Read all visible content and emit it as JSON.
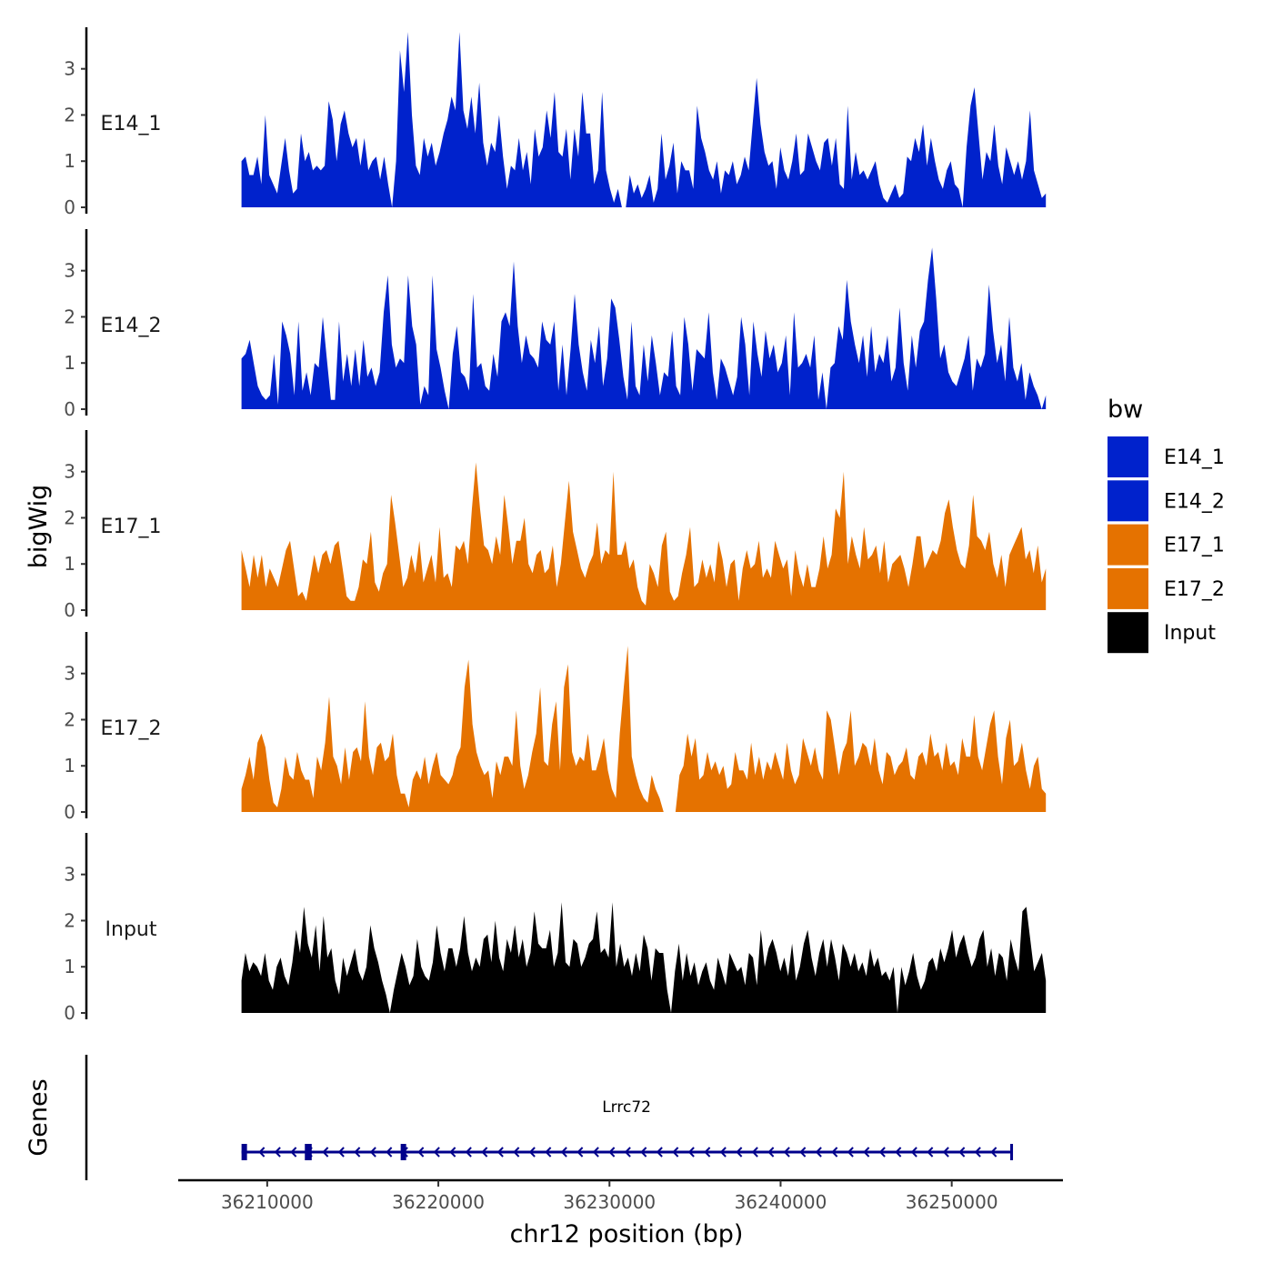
{
  "colors": {
    "blue": "#0022cc",
    "orange": "#e57200",
    "black": "#000000",
    "gene": "#00008b",
    "axis": "#000000"
  },
  "chart_data": {
    "type": "area",
    "title": "",
    "xlabel": "chr12 position (bp)",
    "ylabel_tracks": "bigWig",
    "ylabel_genes": "Genes",
    "xlim": [
      36204800,
      36256500
    ],
    "data_range": [
      36208500,
      36255500
    ],
    "ylim": [
      0,
      3.9
    ],
    "y_ticks": [
      "0",
      "1",
      "2",
      "3"
    ],
    "x_ticks": [
      {
        "value": 36210000,
        "label": "36210000"
      },
      {
        "value": 36220000,
        "label": "36220000"
      },
      {
        "value": 36230000,
        "label": "36230000"
      },
      {
        "value": 36240000,
        "label": "36240000"
      },
      {
        "value": 36250000,
        "label": "36250000"
      }
    ],
    "legend": {
      "title": "bw",
      "position": "right",
      "entries": [
        {
          "label": "E14_1",
          "color": "#0022cc"
        },
        {
          "label": "E14_2",
          "color": "#0022cc"
        },
        {
          "label": "E17_1",
          "color": "#e57200"
        },
        {
          "label": "E17_2",
          "color": "#e57200"
        },
        {
          "label": "Input",
          "color": "#000000"
        }
      ]
    },
    "series": [
      {
        "name": "E14_1",
        "color": "#0022cc",
        "values": [
          1.0,
          1.1,
          0.7,
          0.7,
          1.1,
          0.5,
          2.0,
          0.7,
          0.5,
          0.3,
          0.9,
          1.5,
          0.8,
          0.3,
          0.4,
          1.6,
          1.0,
          1.2,
          0.8,
          0.9,
          0.8,
          0.9,
          2.3,
          1.9,
          1.0,
          1.8,
          2.1,
          1.6,
          1.3,
          1.5,
          0.9,
          1.5,
          0.8,
          1.0,
          1.1,
          0.6,
          1.1,
          0.5,
          0.0,
          1.0,
          3.4,
          2.5,
          3.8,
          2.0,
          0.9,
          0.7,
          1.5,
          1.1,
          1.4,
          0.9,
          1.2,
          1.6,
          1.9,
          2.4,
          2.1,
          3.8,
          2.1,
          1.7,
          2.4,
          1.6,
          2.7,
          1.4,
          0.9,
          1.4,
          1.2,
          2.0,
          1.1,
          0.4,
          0.9,
          0.8,
          1.5,
          0.8,
          1.2,
          0.5,
          1.7,
          1.1,
          1.3,
          2.1,
          1.5,
          2.5,
          1.2,
          1.1,
          1.7,
          0.6,
          1.7,
          1.1,
          2.5,
          1.6,
          1.6,
          0.5,
          0.8,
          2.5,
          0.8,
          0.4,
          0.1,
          0.4,
          0.0,
          0.0,
          0.7,
          0.3,
          0.5,
          0.2,
          0.4,
          0.7,
          0.1,
          0.4,
          1.6,
          0.6,
          0.9,
          1.4,
          0.3,
          1.0,
          0.8,
          0.8,
          0.4,
          2.2,
          1.5,
          1.2,
          0.8,
          0.6,
          1.0,
          0.3,
          0.8,
          0.7,
          1.0,
          0.5,
          0.7,
          1.1,
          0.8,
          1.8,
          2.8,
          1.8,
          1.2,
          0.9,
          1.0,
          0.4,
          1.3,
          0.8,
          0.6,
          1.0,
          1.6,
          0.7,
          0.8,
          1.6,
          1.3,
          1.0,
          0.8,
          1.4,
          1.5,
          0.9,
          1.5,
          0.5,
          0.4,
          2.2,
          0.6,
          1.2,
          0.7,
          0.8,
          0.6,
          0.8,
          1.0,
          0.5,
          0.2,
          0.1,
          0.3,
          0.5,
          0.2,
          0.3,
          1.1,
          1.0,
          1.5,
          1.2,
          1.8,
          0.9,
          1.5,
          1.0,
          0.6,
          0.4,
          0.8,
          1.0,
          0.5,
          0.4,
          0.0,
          1.3,
          2.2,
          2.6,
          1.6,
          0.6,
          1.2,
          1.0,
          1.8,
          0.9,
          0.5,
          1.3,
          1.0,
          0.7,
          1.0,
          0.6,
          1.0,
          2.1,
          0.8,
          0.5,
          0.2,
          0.3
        ]
      },
      {
        "name": "E14_2",
        "color": "#0022cc",
        "values": [
          1.1,
          1.2,
          1.5,
          1.0,
          0.5,
          0.3,
          0.2,
          0.3,
          1.2,
          0.1,
          1.9,
          1.6,
          1.2,
          0.3,
          1.9,
          0.4,
          0.8,
          0.3,
          1.0,
          0.9,
          2.0,
          1.1,
          0.2,
          0.2,
          1.9,
          0.6,
          1.2,
          0.5,
          1.3,
          0.5,
          1.5,
          0.7,
          0.9,
          0.5,
          0.8,
          2.1,
          2.9,
          1.4,
          0.9,
          1.1,
          1.0,
          2.9,
          1.8,
          1.4,
          0.1,
          0.5,
          0.3,
          2.9,
          1.3,
          0.9,
          0.4,
          0.0,
          1.2,
          1.8,
          0.8,
          0.7,
          0.4,
          2.5,
          0.9,
          1.0,
          0.5,
          0.4,
          1.2,
          0.7,
          1.9,
          2.1,
          1.8,
          3.2,
          1.8,
          1.0,
          1.6,
          1.2,
          1.1,
          0.9,
          1.9,
          1.5,
          1.4,
          1.9,
          0.4,
          1.4,
          0.3,
          1.3,
          2.5,
          1.4,
          0.8,
          0.4,
          1.5,
          1.0,
          1.8,
          0.5,
          1.1,
          2.4,
          2.2,
          1.5,
          0.7,
          0.2,
          1.9,
          0.5,
          0.3,
          1.4,
          0.6,
          1.6,
          1.0,
          0.3,
          0.8,
          0.7,
          1.7,
          0.5,
          0.3,
          2.0,
          1.4,
          0.4,
          1.3,
          1.2,
          1.1,
          2.1,
          0.8,
          0.2,
          1.1,
          0.9,
          0.6,
          0.3,
          0.7,
          2.0,
          1.4,
          0.3,
          1.9,
          1.2,
          0.7,
          1.7,
          1.1,
          1.4,
          0.8,
          1.0,
          1.6,
          0.3,
          2.1,
          0.9,
          1.0,
          1.2,
          0.9,
          1.6,
          0.2,
          0.8,
          0.0,
          0.9,
          1.0,
          1.8,
          1.5,
          2.8,
          1.9,
          1.4,
          1.0,
          1.6,
          0.7,
          1.8,
          0.8,
          1.2,
          1.0,
          1.6,
          0.6,
          0.9,
          2.2,
          1.0,
          0.4,
          1.6,
          0.9,
          1.7,
          1.9,
          2.8,
          3.5,
          2.4,
          1.1,
          1.4,
          0.8,
          0.6,
          0.5,
          0.8,
          1.1,
          1.6,
          0.4,
          1.1,
          0.9,
          1.2,
          2.7,
          1.7,
          1.0,
          1.4,
          0.6,
          2.0,
          0.9,
          0.6,
          1.0,
          0.2,
          0.8,
          0.5,
          0.3,
          0.0,
          0.3
        ]
      },
      {
        "name": "E17_1",
        "color": "#e57200",
        "values": [
          1.3,
          0.9,
          0.5,
          1.2,
          0.7,
          1.2,
          0.5,
          0.9,
          0.7,
          0.5,
          0.9,
          1.3,
          1.5,
          0.9,
          0.3,
          0.4,
          0.2,
          0.7,
          1.2,
          0.8,
          1.2,
          1.3,
          1.0,
          1.4,
          1.5,
          0.9,
          0.3,
          0.2,
          0.2,
          0.5,
          1.1,
          1.0,
          1.7,
          0.6,
          0.4,
          0.8,
          1.0,
          2.5,
          1.9,
          1.2,
          0.5,
          0.7,
          1.2,
          0.8,
          1.5,
          0.6,
          0.9,
          1.2,
          0.6,
          1.8,
          0.7,
          0.8,
          0.5,
          1.4,
          1.3,
          1.5,
          1.0,
          2.2,
          3.2,
          2.2,
          1.4,
          1.3,
          1.0,
          1.6,
          1.2,
          2.5,
          1.8,
          1.0,
          1.5,
          1.5,
          2.0,
          1.0,
          0.8,
          1.2,
          1.3,
          0.8,
          0.9,
          1.4,
          0.5,
          1.0,
          1.9,
          2.8,
          1.7,
          1.3,
          0.9,
          0.7,
          1.0,
          1.2,
          1.9,
          1.0,
          1.3,
          1.2,
          3.0,
          1.2,
          1.2,
          1.5,
          0.9,
          1.1,
          0.5,
          0.2,
          0.1,
          1.0,
          0.8,
          0.5,
          1.4,
          1.7,
          0.4,
          0.2,
          0.3,
          0.8,
          1.2,
          1.8,
          0.5,
          0.6,
          1.1,
          0.7,
          1.0,
          0.6,
          1.5,
          1.1,
          0.5,
          1.0,
          1.1,
          0.2,
          0.9,
          1.3,
          0.9,
          1.0,
          1.5,
          0.7,
          0.9,
          0.7,
          1.5,
          1.2,
          0.9,
          1.1,
          0.3,
          1.3,
          0.8,
          0.5,
          1.0,
          0.5,
          0.5,
          0.9,
          1.6,
          0.9,
          1.2,
          2.2,
          2.0,
          3.0,
          1.0,
          1.6,
          1.2,
          0.9,
          1.8,
          1.1,
          1.2,
          1.4,
          0.8,
          1.5,
          0.6,
          1.0,
          1.1,
          1.2,
          0.9,
          0.5,
          1.0,
          1.6,
          1.6,
          0.9,
          1.1,
          1.3,
          1.2,
          1.5,
          2.1,
          2.4,
          1.8,
          1.3,
          1.0,
          0.9,
          1.4,
          2.5,
          1.6,
          1.5,
          1.3,
          1.7,
          1.0,
          0.7,
          1.2,
          0.5,
          1.2,
          1.4,
          1.6,
          1.8,
          1.1,
          1.3,
          0.8,
          1.4,
          0.6,
          0.9
        ]
      },
      {
        "name": "E17_2",
        "color": "#e57200",
        "values": [
          0.5,
          0.8,
          1.2,
          0.7,
          1.5,
          1.7,
          1.4,
          0.7,
          0.2,
          0.1,
          0.5,
          1.2,
          0.8,
          0.7,
          1.3,
          0.9,
          0.7,
          0.7,
          0.3,
          1.2,
          0.9,
          1.5,
          2.5,
          1.2,
          1.0,
          0.6,
          1.4,
          0.7,
          1.3,
          1.4,
          1.1,
          2.4,
          1.2,
          0.8,
          1.4,
          1.5,
          1.1,
          1.2,
          1.7,
          0.8,
          0.4,
          0.4,
          0.1,
          0.7,
          0.9,
          0.7,
          1.2,
          0.6,
          1.0,
          1.3,
          0.8,
          0.7,
          0.6,
          0.8,
          1.2,
          1.4,
          2.7,
          3.3,
          1.9,
          1.3,
          1.0,
          0.8,
          0.9,
          0.3,
          1.1,
          0.8,
          1.2,
          1.2,
          1.0,
          2.2,
          1.0,
          0.5,
          0.8,
          1.3,
          1.7,
          2.7,
          1.1,
          1.0,
          1.9,
          2.4,
          0.9,
          2.7,
          3.2,
          1.3,
          1.0,
          1.2,
          1.1,
          1.7,
          0.9,
          0.9,
          1.2,
          1.6,
          0.9,
          0.5,
          0.3,
          1.7,
          2.7,
          3.6,
          1.2,
          0.8,
          0.5,
          0.3,
          0.2,
          0.8,
          0.5,
          0.3,
          0.0,
          0.0,
          0.0,
          0.0,
          0.8,
          1.0,
          1.7,
          1.2,
          1.6,
          0.7,
          0.8,
          1.3,
          0.9,
          1.1,
          0.8,
          1.0,
          0.5,
          0.6,
          1.3,
          0.9,
          0.9,
          0.7,
          1.5,
          0.8,
          1.2,
          0.7,
          1.1,
          0.9,
          1.3,
          1.0,
          0.7,
          1.5,
          0.9,
          0.6,
          0.8,
          1.6,
          1.3,
          1.0,
          1.4,
          0.9,
          0.7,
          2.2,
          2.0,
          1.4,
          0.8,
          1.3,
          1.5,
          2.2,
          1.0,
          1.2,
          1.5,
          1.4,
          1.0,
          1.6,
          0.9,
          0.6,
          1.3,
          1.2,
          0.8,
          1.0,
          1.1,
          1.4,
          0.8,
          0.7,
          1.2,
          1.3,
          1.0,
          1.7,
          1.2,
          1.3,
          0.9,
          1.5,
          1.0,
          1.1,
          0.8,
          1.6,
          1.2,
          1.2,
          2.1,
          1.2,
          0.9,
          1.4,
          1.9,
          2.2,
          1.2,
          0.6,
          1.6,
          2.0,
          1.0,
          1.1,
          1.5,
          0.9,
          0.5,
          1.0,
          1.2,
          0.5,
          0.4
        ]
      },
      {
        "name": "Input",
        "color": "#000000",
        "values": [
          0.7,
          1.3,
          0.9,
          1.1,
          1.0,
          0.8,
          1.3,
          0.7,
          0.5,
          1.0,
          1.2,
          0.8,
          0.6,
          1.1,
          1.8,
          1.3,
          2.3,
          1.5,
          1.2,
          1.9,
          0.9,
          2.1,
          1.2,
          1.4,
          0.7,
          0.4,
          1.2,
          0.8,
          1.1,
          1.4,
          0.9,
          0.7,
          1.0,
          1.9,
          1.4,
          1.1,
          0.7,
          0.4,
          0.0,
          0.5,
          0.9,
          1.3,
          1.0,
          0.6,
          0.8,
          1.6,
          1.0,
          0.8,
          0.7,
          1.1,
          1.9,
          1.3,
          0.9,
          1.4,
          1.4,
          1.0,
          1.4,
          2.1,
          1.3,
          0.9,
          1.2,
          1.0,
          1.6,
          1.7,
          1.1,
          2.0,
          1.2,
          0.9,
          1.6,
          1.3,
          1.9,
          1.2,
          1.6,
          1.0,
          1.3,
          2.2,
          1.5,
          1.4,
          1.4,
          1.8,
          1.0,
          1.3,
          2.4,
          1.1,
          1.0,
          1.6,
          1.5,
          1.0,
          1.2,
          1.5,
          1.6,
          2.2,
          1.3,
          1.4,
          1.2,
          2.4,
          1.0,
          1.5,
          1.0,
          1.2,
          0.8,
          1.3,
          0.9,
          1.7,
          1.4,
          0.7,
          1.4,
          1.3,
          1.3,
          0.5,
          0.0,
          0.9,
          1.5,
          0.7,
          1.3,
          0.8,
          1.1,
          0.6,
          0.9,
          1.1,
          0.7,
          0.5,
          1.2,
          0.9,
          0.6,
          1.3,
          1.1,
          0.9,
          1.0,
          0.6,
          1.3,
          1.2,
          0.6,
          1.8,
          1.0,
          1.4,
          1.6,
          1.3,
          0.9,
          1.2,
          0.8,
          1.5,
          0.7,
          1.0,
          1.5,
          1.8,
          1.2,
          0.8,
          1.3,
          1.6,
          1.0,
          1.6,
          1.2,
          0.7,
          1.5,
          1.3,
          1.0,
          1.3,
          0.9,
          1.1,
          0.8,
          1.4,
          1.0,
          1.2,
          0.8,
          0.9,
          0.7,
          1.0,
          0.0,
          1.0,
          0.6,
          0.9,
          1.3,
          0.8,
          0.5,
          0.7,
          1.1,
          1.2,
          0.9,
          1.4,
          1.1,
          1.4,
          1.8,
          1.2,
          1.5,
          1.7,
          1.3,
          1.0,
          1.2,
          1.6,
          1.8,
          1.0,
          1.4,
          0.8,
          1.3,
          1.2,
          0.7,
          1.6,
          1.2,
          0.9,
          2.2,
          2.3,
          1.6,
          0.9,
          1.1,
          1.3,
          0.7
        ]
      }
    ],
    "gene": {
      "name": "Lrrc72",
      "strand": "-",
      "start": 36208500,
      "end": 36253500,
      "exons": [
        [
          36208500,
          36208800
        ],
        [
          36212200,
          36212600
        ],
        [
          36217800,
          36218100
        ]
      ]
    }
  }
}
